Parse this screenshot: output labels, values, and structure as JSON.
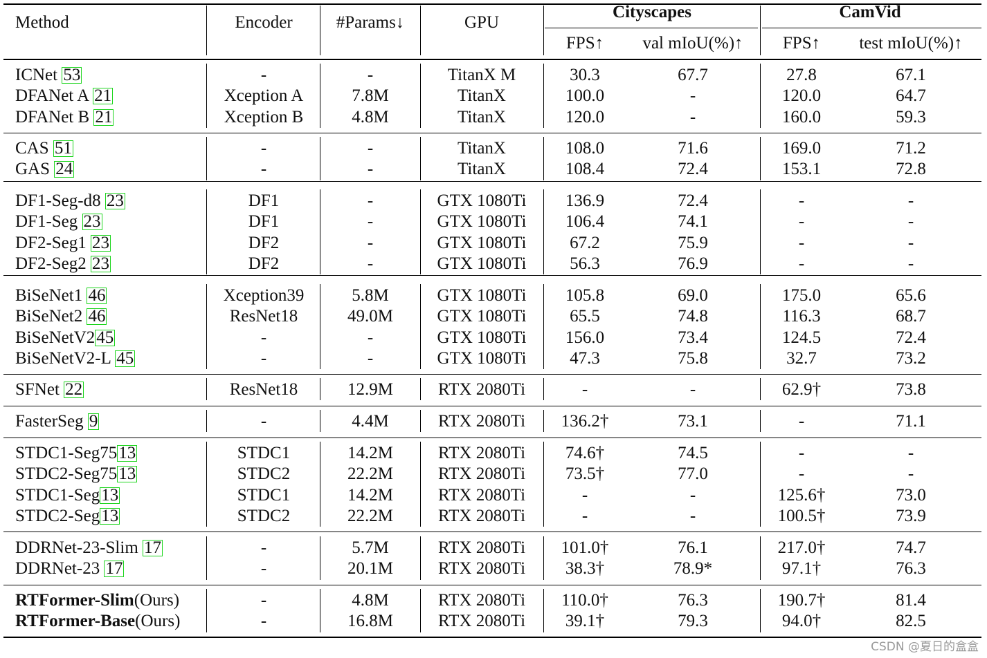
{
  "header": {
    "method": "Method",
    "encoder": "Encoder",
    "params": "#Params↓",
    "gpu": "GPU",
    "cityscapes": "Cityscapes",
    "camvid": "CamVid",
    "city_fps": "FPS↑",
    "city_miou": "val mIoU(%)↑",
    "cam_fps": "FPS↑",
    "cam_miou": "test mIoU(%)↑"
  },
  "groups": [
    [
      {
        "name": "ICNet ",
        "ref": "53",
        "encoder": "-",
        "params": "-",
        "gpu": "TitanX M",
        "cfps": "30.3",
        "cmiou": "67.7",
        "vfps": "27.8",
        "vmiou": "67.1"
      },
      {
        "name": "DFANet A ",
        "ref": "21",
        "encoder": "Xception A",
        "params": "7.8M",
        "gpu": "TitanX",
        "cfps": "100.0",
        "cmiou": "-",
        "vfps": "120.0",
        "vmiou": "64.7"
      },
      {
        "name": "DFANet B ",
        "ref": "21",
        "encoder": "Xception B",
        "params": "4.8M",
        "gpu": "TitanX",
        "cfps": "120.0",
        "cmiou": "-",
        "vfps": "160.0",
        "vmiou": "59.3"
      }
    ],
    [
      {
        "name": "CAS ",
        "ref": "51",
        "encoder": "-",
        "params": "-",
        "gpu": "TitanX",
        "cfps": "108.0",
        "cmiou": "71.6",
        "vfps": "169.0",
        "vmiou": "71.2"
      },
      {
        "name": "GAS ",
        "ref": "24",
        "encoder": "-",
        "params": "-",
        "gpu": "TitanX",
        "cfps": "108.4",
        "cmiou": "72.4",
        "vfps": "153.1",
        "vmiou": "72.8"
      }
    ],
    [
      {
        "name": "DF1-Seg-d8 ",
        "ref": "23",
        "encoder": "DF1",
        "params": "-",
        "gpu": "GTX 1080Ti",
        "cfps": "136.9",
        "cmiou": "72.4",
        "vfps": "-",
        "vmiou": "-"
      },
      {
        "name": "DF1-Seg ",
        "ref": "23",
        "encoder": "DF1",
        "params": "-",
        "gpu": "GTX 1080Ti",
        "cfps": "106.4",
        "cmiou": "74.1",
        "vfps": "-",
        "vmiou": "-"
      },
      {
        "name": "DF2-Seg1 ",
        "ref": "23",
        "encoder": "DF2",
        "params": "-",
        "gpu": "GTX 1080Ti",
        "cfps": "67.2",
        "cmiou": "75.9",
        "vfps": "-",
        "vmiou": "-"
      },
      {
        "name": "DF2-Seg2 ",
        "ref": "23",
        "encoder": "DF2",
        "params": "-",
        "gpu": "GTX 1080Ti",
        "cfps": "56.3",
        "cmiou": "76.9",
        "vfps": "-",
        "vmiou": "-"
      }
    ],
    [
      {
        "name": "BiSeNet1 ",
        "ref": "46",
        "encoder": "Xception39",
        "params": "5.8M",
        "gpu": "GTX 1080Ti",
        "cfps": "105.8",
        "cmiou": "69.0",
        "vfps": "175.0",
        "vmiou": "65.6"
      },
      {
        "name": "BiSeNet2 ",
        "ref": "46",
        "encoder": "ResNet18",
        "params": "49.0M",
        "gpu": "GTX 1080Ti",
        "cfps": "65.5",
        "cmiou": "74.8",
        "vfps": "116.3",
        "vmiou": "68.7"
      },
      {
        "name": "BiSeNetV2",
        "ref": "45",
        "encoder": "-",
        "params": "-",
        "gpu": "GTX 1080Ti",
        "cfps": "156.0",
        "cmiou": "73.4",
        "vfps": "124.5",
        "vmiou": "72.4"
      },
      {
        "name": "BiSeNetV2-L ",
        "ref": "45",
        "encoder": "-",
        "params": "-",
        "gpu": "GTX 1080Ti",
        "cfps": "47.3",
        "cmiou": "75.8",
        "vfps": "32.7",
        "vmiou": "73.2"
      }
    ],
    [
      {
        "name": "SFNet ",
        "ref": "22",
        "encoder": "ResNet18",
        "params": "12.9M",
        "gpu": "RTX 2080Ti",
        "cfps": "-",
        "cmiou": "-",
        "vfps": "62.9†",
        "vmiou": "73.8"
      }
    ],
    [
      {
        "name": "FasterSeg ",
        "ref": "9",
        "encoder": "-",
        "params": "4.4M",
        "gpu": "RTX 2080Ti",
        "cfps": "136.2†",
        "cmiou": "73.1",
        "vfps": "-",
        "vmiou": "71.1"
      }
    ],
    [
      {
        "name": "STDC1-Seg75",
        "ref": "13",
        "encoder": "STDC1",
        "params": "14.2M",
        "gpu": "RTX 2080Ti",
        "cfps": "74.6†",
        "cmiou": "74.5",
        "vfps": "-",
        "vmiou": "-"
      },
      {
        "name": "STDC2-Seg75",
        "ref": "13",
        "encoder": "STDC2",
        "params": "22.2M",
        "gpu": "RTX 2080Ti",
        "cfps": "73.5†",
        "cmiou": "77.0",
        "vfps": "-",
        "vmiou": "-"
      },
      {
        "name": "STDC1-Seg",
        "ref": "13",
        "encoder": "STDC1",
        "params": "14.2M",
        "gpu": "RTX 2080Ti",
        "cfps": "-",
        "cmiou": "-",
        "vfps": "125.6†",
        "vmiou": "73.0"
      },
      {
        "name": "STDC2-Seg",
        "ref": "13",
        "encoder": "STDC2",
        "params": "22.2M",
        "gpu": "RTX 2080Ti",
        "cfps": "-",
        "cmiou": "-",
        "vfps": "100.5†",
        "vmiou": "73.9"
      }
    ],
    [
      {
        "name": "DDRNet-23-Slim ",
        "ref": "17",
        "encoder": "-",
        "params": "5.7M",
        "gpu": "RTX 2080Ti",
        "cfps": "101.0†",
        "cmiou": "76.1",
        "vfps": "217.0†",
        "vmiou": "74.7"
      },
      {
        "name": "DDRNet-23 ",
        "ref": "17",
        "encoder": "-",
        "params": "20.1M",
        "gpu": "RTX 2080Ti",
        "cfps": "38.3†",
        "cmiou": "78.9*",
        "vfps": "97.1†",
        "vmiou": "76.3"
      }
    ],
    [
      {
        "name": "RTFormer-Slim",
        "suffix": "(Ours)",
        "bold": true,
        "encoder": "-",
        "params": "4.8M",
        "gpu": "RTX 2080Ti",
        "cfps": "110.0†",
        "cmiou": "76.3",
        "vfps": "190.7†",
        "vmiou": "81.4"
      },
      {
        "name": "RTFormer-Base",
        "suffix": "(Ours)",
        "bold": true,
        "encoder": "-",
        "params": "16.8M",
        "gpu": "RTX 2080Ti",
        "cfps": "39.1†",
        "cmiou": "79.3",
        "vfps": "94.0†",
        "vmiou": "82.5"
      }
    ]
  ],
  "watermark": "CSDN @夏日的盒盒"
}
